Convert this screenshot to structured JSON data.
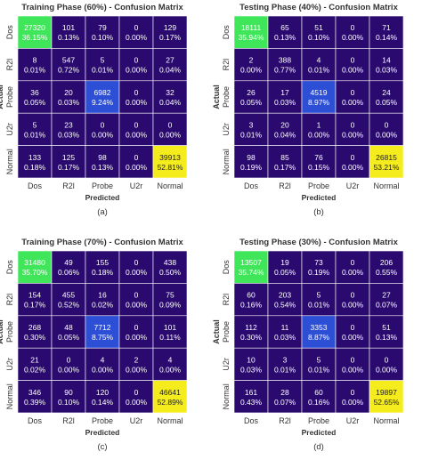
{
  "colors": {
    "background_cell": "#2a0a6e",
    "dos_cell": "#3fe65a",
    "probe_cell": "#2d4fd6",
    "normal_cell": "#f4ec1c",
    "grid_line": "#ffffff",
    "cell_text_light": "#ffffff",
    "cell_text_dark": "#222222",
    "axis_text": "#333333"
  },
  "chart_data": [
    {
      "type": "heatmap",
      "title": "Training Phase (60%) - Confusion Matrix",
      "caption": "(a)",
      "xlabel": "Predicted",
      "ylabel": "Actual",
      "x_categories": [
        "Dos",
        "R2l",
        "Probe",
        "U2r",
        "Normal"
      ],
      "y_categories": [
        "Dos",
        "R2l",
        "Probe",
        "U2r",
        "Normal"
      ],
      "counts": [
        [
          27320,
          101,
          79,
          0,
          129
        ],
        [
          8,
          547,
          5,
          0,
          27
        ],
        [
          36,
          20,
          6982,
          0,
          32
        ],
        [
          5,
          23,
          0,
          0,
          0
        ],
        [
          133,
          125,
          98,
          0,
          39913
        ]
      ],
      "percents": [
        [
          "36.15%",
          "0.13%",
          "0.10%",
          "0.00%",
          "0.17%"
        ],
        [
          "0.01%",
          "0.72%",
          "0.01%",
          "0.00%",
          "0.04%"
        ],
        [
          "0.05%",
          "0.03%",
          "9.24%",
          "0.00%",
          "0.04%"
        ],
        [
          "0.01%",
          "0.03%",
          "0.00%",
          "0.00%",
          "0.00%"
        ],
        [
          "0.18%",
          "0.17%",
          "0.13%",
          "0.00%",
          "52.81%"
        ]
      ]
    },
    {
      "type": "heatmap",
      "title": "Testing Phase (40%) - Confusion Matrix",
      "caption": "(b)",
      "xlabel": "Predicted",
      "ylabel": "Actual",
      "x_categories": [
        "Dos",
        "R2l",
        "Probe",
        "U2r",
        "Normal"
      ],
      "y_categories": [
        "Dos",
        "R2l",
        "Probe",
        "U2r",
        "Normal"
      ],
      "counts": [
        [
          18111,
          65,
          51,
          0,
          71
        ],
        [
          2,
          388,
          4,
          0,
          14
        ],
        [
          26,
          17,
          4519,
          0,
          24
        ],
        [
          3,
          20,
          1,
          0,
          0
        ],
        [
          98,
          85,
          76,
          0,
          26815
        ]
      ],
      "percents": [
        [
          "35.94%",
          "0.13%",
          "0.10%",
          "0.00%",
          "0.14%"
        ],
        [
          "0.00%",
          "0.77%",
          "0.01%",
          "0.00%",
          "0.03%"
        ],
        [
          "0.05%",
          "0.03%",
          "8.97%",
          "0.00%",
          "0.05%"
        ],
        [
          "0.01%",
          "0.04%",
          "0.00%",
          "0.00%",
          "0.00%"
        ],
        [
          "0.19%",
          "0.17%",
          "0.15%",
          "0.00%",
          "53.21%"
        ]
      ]
    },
    {
      "type": "heatmap",
      "title": "Training Phase (70%) - Confusion Matrix",
      "caption": "(c)",
      "xlabel": "Predicted",
      "ylabel": "Actual",
      "x_categories": [
        "Dos",
        "R2l",
        "Probe",
        "U2r",
        "Normal"
      ],
      "y_categories": [
        "Dos",
        "R2l",
        "Probe",
        "U2r",
        "Normal"
      ],
      "counts": [
        [
          31480,
          49,
          155,
          0,
          438
        ],
        [
          154,
          455,
          16,
          0,
          75
        ],
        [
          268,
          48,
          7712,
          0,
          101
        ],
        [
          21,
          0,
          4,
          2,
          4
        ],
        [
          346,
          90,
          120,
          0,
          46641
        ]
      ],
      "percents": [
        [
          "35.70%",
          "0.06%",
          "0.18%",
          "0.00%",
          "0.50%"
        ],
        [
          "0.17%",
          "0.52%",
          "0.02%",
          "0.00%",
          "0.09%"
        ],
        [
          "0.30%",
          "0.05%",
          "8.75%",
          "0.00%",
          "0.11%"
        ],
        [
          "0.02%",
          "0.00%",
          "0.00%",
          "0.00%",
          "0.00%"
        ],
        [
          "0.39%",
          "0.10%",
          "0.14%",
          "0.00%",
          "52.89%"
        ]
      ]
    },
    {
      "type": "heatmap",
      "title": "Testing Phase (30%) - Confusion Matrix",
      "caption": "(d)",
      "xlabel": "Predicted",
      "ylabel": "Actual",
      "x_categories": [
        "Dos",
        "R2l",
        "Probe",
        "U2r",
        "Normal"
      ],
      "y_categories": [
        "Dos",
        "R2l",
        "Probe",
        "U2r",
        "Normal"
      ],
      "counts": [
        [
          13507,
          19,
          73,
          0,
          206
        ],
        [
          60,
          203,
          5,
          0,
          27
        ],
        [
          112,
          11,
          3353,
          0,
          51
        ],
        [
          10,
          3,
          5,
          0,
          0
        ],
        [
          161,
          28,
          60,
          0,
          19897
        ]
      ],
      "percents": [
        [
          "35.74%",
          "0.05%",
          "0.19%",
          "0.00%",
          "0.55%"
        ],
        [
          "0.16%",
          "0.54%",
          "0.01%",
          "0.00%",
          "0.07%"
        ],
        [
          "0.30%",
          "0.03%",
          "8.87%",
          "0.00%",
          "0.13%"
        ],
        [
          "0.03%",
          "0.01%",
          "0.01%",
          "0.00%",
          "0.00%"
        ],
        [
          "0.43%",
          "0.07%",
          "0.16%",
          "0.00%",
          "52.65%"
        ]
      ]
    }
  ]
}
